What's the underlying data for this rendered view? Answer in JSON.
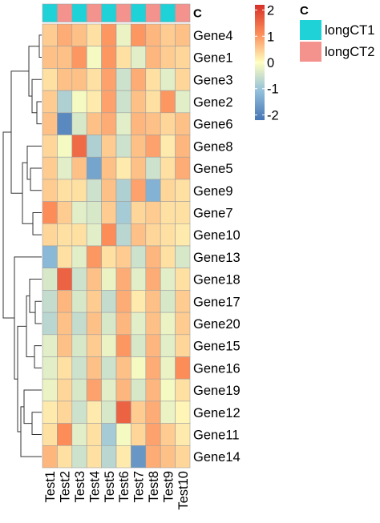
{
  "chart_data": {
    "type": "heatmap",
    "column_annotation": {
      "title": "C",
      "values": [
        "longCT1",
        "longCT2",
        "longCT1",
        "longCT2",
        "longCT1",
        "longCT2",
        "longCT1",
        "longCT2",
        "longCT1",
        "longCT2"
      ],
      "legend": [
        {
          "label": "longCT1",
          "color": "#1ED2D8"
        },
        {
          "label": "longCT2",
          "color": "#F4928E"
        }
      ]
    },
    "columns": [
      "Test1",
      "Test2",
      "Test3",
      "Test4",
      "Test5",
      "Test6",
      "Test7",
      "Test8",
      "Test9",
      "Test10"
    ],
    "rows": [
      "Gene4",
      "Gene1",
      "Gene3",
      "Gene2",
      "Gene6",
      "Gene8",
      "Gene5",
      "Gene9",
      "Gene7",
      "Gene10",
      "Gene13",
      "Gene18",
      "Gene17",
      "Gene20",
      "Gene15",
      "Gene16",
      "Gene19",
      "Gene12",
      "Gene11",
      "Gene14"
    ],
    "values": [
      [
        0.5,
        0.8,
        0.6,
        0.3,
        1.0,
        -0.2,
        1.0,
        0.7,
        0.5,
        0.6
      ],
      [
        0.6,
        0.6,
        1.0,
        -0.1,
        1.0,
        0.3,
        -0.3,
        0.7,
        0.5,
        0.4
      ],
      [
        0.3,
        0.6,
        0.6,
        0.3,
        0.9,
        -0.5,
        0.8,
        0.3,
        -0.3,
        0.4
      ],
      [
        0.5,
        -0.8,
        -0.1,
        0.2,
        0.9,
        -0.5,
        0.6,
        0.3,
        1.0,
        -0.3
      ],
      [
        0.6,
        -1.9,
        -0.4,
        0.6,
        0.8,
        -0.3,
        0.7,
        0.6,
        0.4,
        0.6
      ],
      [
        0.4,
        -0.1,
        1.5,
        -0.8,
        0.5,
        -0.5,
        0.6,
        0.9,
        0.2,
        0.7
      ],
      [
        0.5,
        -0.3,
        0.6,
        -1.5,
        0.6,
        0.2,
        0.6,
        -0.5,
        0.3,
        0.8
      ],
      [
        0.5,
        0.3,
        0.3,
        -0.5,
        0.6,
        -0.8,
        0.9,
        -1.3,
        0.4,
        0.3
      ],
      [
        1.1,
        0.5,
        -0.3,
        -0.4,
        0.5,
        -0.9,
        0.4,
        0.5,
        0.3,
        0.3
      ],
      [
        0.4,
        0.3,
        0.3,
        -0.3,
        1.1,
        -0.7,
        0.6,
        0.4,
        0.3,
        0.2
      ],
      [
        -1.2,
        0.3,
        -0.3,
        1.0,
        0.3,
        0.5,
        -0.5,
        0.7,
        0.3,
        -0.4
      ],
      [
        -0.4,
        1.6,
        -0.5,
        0.6,
        -0.2,
        0.8,
        -0.3,
        0.8,
        -0.3,
        0.3
      ],
      [
        -0.6,
        0.7,
        -0.4,
        0.5,
        -0.6,
        0.8,
        0.2,
        0.6,
        -0.4,
        0.5
      ],
      [
        -0.7,
        0.6,
        -0.6,
        0.6,
        -0.4,
        0.7,
        -0.3,
        0.6,
        -0.2,
        0.5
      ],
      [
        -0.3,
        0.6,
        -0.4,
        0.5,
        -0.2,
        1.0,
        -0.4,
        0.7,
        -0.3,
        0.4
      ],
      [
        -0.3,
        0.3,
        -0.5,
        0.6,
        -0.5,
        0.6,
        -0.1,
        0.8,
        -0.2,
        1.1
      ],
      [
        -0.2,
        0.4,
        -0.4,
        0.9,
        -0.3,
        0.7,
        -0.4,
        0.7,
        -0.1,
        0.3
      ],
      [
        0.2,
        0.4,
        -0.5,
        0.2,
        -0.4,
        1.6,
        0.5,
        0.8,
        -0.2,
        0.1
      ],
      [
        0.3,
        1.1,
        -0.3,
        0.3,
        -0.9,
        -0.1,
        0.4,
        0.9,
        0.5,
        0.2
      ],
      [
        0.7,
        0.3,
        -0.5,
        0.3,
        -0.7,
        0.2,
        -1.7,
        0.8,
        0.6,
        0.4
      ]
    ],
    "color_scale": {
      "min": -2.2,
      "max": 2.2,
      "stops": [
        {
          "value": -2.2,
          "color": "#4575B4"
        },
        {
          "value": -1.1,
          "color": "#91BFDB"
        },
        {
          "value": 0,
          "color": "#FFFFBF"
        },
        {
          "value": 1.1,
          "color": "#FC8D59"
        },
        {
          "value": 2.2,
          "color": "#D73027"
        }
      ],
      "ticks": [
        2,
        1,
        0,
        -1,
        -2
      ],
      "tick_labels": [
        "2",
        "1",
        "0",
        "-1",
        "-2"
      ]
    },
    "legend_placement": "right"
  }
}
